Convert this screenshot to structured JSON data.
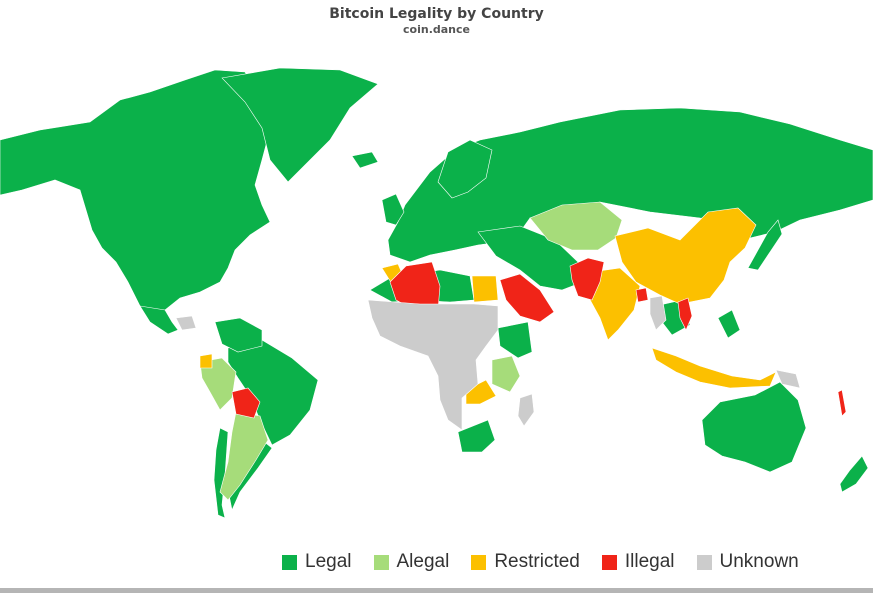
{
  "title": "Bitcoin Legality by Country",
  "subtitle": "coin.dance",
  "colors": {
    "legal": "#0bb14a",
    "alegal": "#a6dc7a",
    "restricted": "#fcc000",
    "illegal": "#f02418",
    "unknown": "#cccccc"
  },
  "legend": [
    {
      "key": "legal",
      "label": "Legal"
    },
    {
      "key": "alegal",
      "label": "Alegal"
    },
    {
      "key": "restricted",
      "label": "Restricted"
    },
    {
      "key": "illegal",
      "label": "Illegal"
    },
    {
      "key": "unknown",
      "label": "Unknown"
    }
  ]
}
